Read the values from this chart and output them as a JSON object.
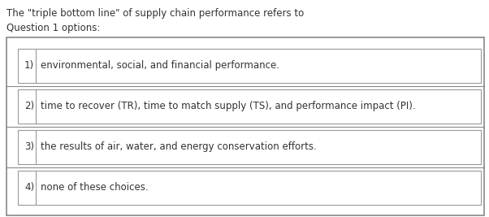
{
  "title_line1": "The \"triple bottom line\" of supply chain performance refers to",
  "title_line2": "Question 1 options:",
  "options": [
    {
      "number": "1)",
      "text": "environmental, social, and financial performance."
    },
    {
      "number": "2)",
      "text": "time to recover (TR), time to match supply (TS), and performance impact (PI)."
    },
    {
      "number": "3)",
      "text": "the results of air, water, and energy conservation efforts."
    },
    {
      "number": "4)",
      "text": "none of these choices."
    }
  ],
  "bg_color": "#ffffff",
  "box_border_color": "#999999",
  "outer_border_color": "#888888",
  "text_color": "#333333",
  "title_fontsize": 8.5,
  "option_fontsize": 8.5,
  "fig_width": 6.02,
  "fig_height": 2.67,
  "dpi": 100
}
